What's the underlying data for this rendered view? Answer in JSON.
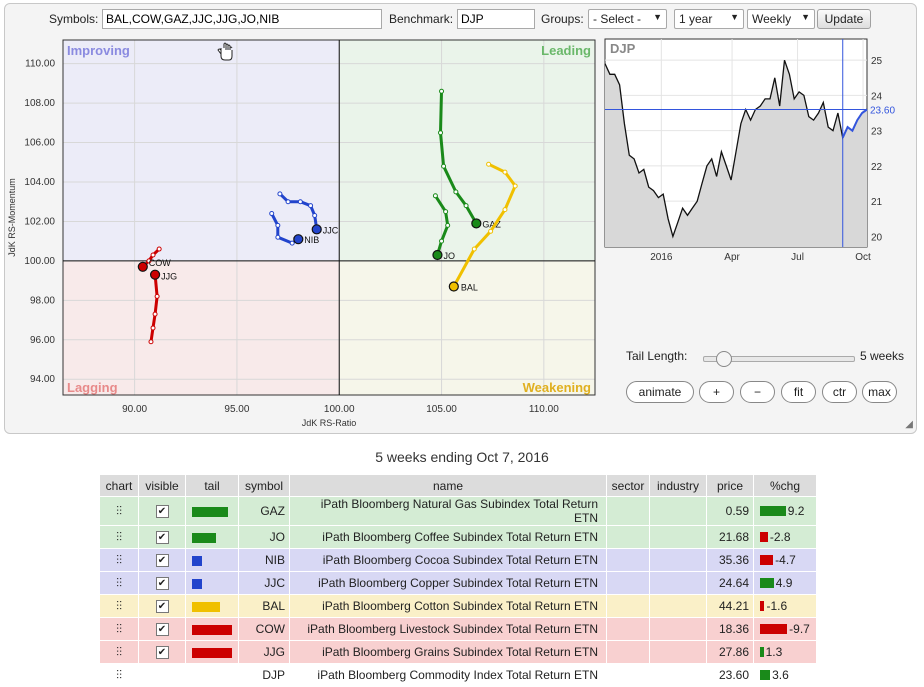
{
  "toolbar": {
    "symbols_label": "Symbols:",
    "symbols_value": "BAL,COW,GAZ,JJC,JJG,JO,NIB",
    "benchmark_label": "Benchmark:",
    "benchmark_value": "DJP",
    "groups_label": "Groups:",
    "groups_value": "- Select -",
    "period_value": "1 year",
    "interval_value": "Weekly",
    "update_label": "Update"
  },
  "quadrants": {
    "improving": "Improving",
    "leading": "Leading",
    "lagging": "Lagging",
    "weakening": "Weakening"
  },
  "controls": {
    "tail_length_label": "Tail Length:",
    "tail_length_value": "5 weeks",
    "animate": "animate",
    "plus": "+",
    "minus": "−",
    "fit": "fit",
    "ctr": "ctr",
    "max": "max"
  },
  "subtitle": "5 weeks ending Oct 7, 2016",
  "table": {
    "headers": [
      "chart",
      "visible",
      "tail",
      "symbol",
      "name",
      "sector",
      "industry",
      "price",
      "%chg"
    ],
    "rows": [
      {
        "symbol": "GAZ",
        "name": "iPath Bloomberg Natural Gas Subindex Total Return ETN",
        "price": "0.59",
        "chg": "9.2",
        "chg_value": 9.2,
        "row_color": "#d4ecd4",
        "tail_color": "#1a8a1a",
        "tail_len": 36,
        "visible": true
      },
      {
        "symbol": "JO",
        "name": "iPath Bloomberg Coffee Subindex Total Return ETN",
        "price": "21.68",
        "chg": "-2.8",
        "chg_value": -2.8,
        "row_color": "#d4ecd4",
        "tail_color": "#1a8a1a",
        "tail_len": 24,
        "visible": true
      },
      {
        "symbol": "NIB",
        "name": "iPath Bloomberg Cocoa Subindex Total Return ETN",
        "price": "35.36",
        "chg": "-4.7",
        "chg_value": -4.7,
        "row_color": "#d8d8f4",
        "tail_color": "#2244cc",
        "tail_len": 10,
        "visible": true
      },
      {
        "symbol": "JJC",
        "name": "iPath Bloomberg Copper Subindex Total Return ETN",
        "price": "24.64",
        "chg": "4.9",
        "chg_value": 4.9,
        "row_color": "#d8d8f4",
        "tail_color": "#2244cc",
        "tail_len": 10,
        "visible": true
      },
      {
        "symbol": "BAL",
        "name": "iPath Bloomberg Cotton Subindex Total Return ETN",
        "price": "44.21",
        "chg": "-1.6",
        "chg_value": -1.6,
        "row_color": "#faf0c8",
        "tail_color": "#f0c000",
        "tail_len": 28,
        "visible": true
      },
      {
        "symbol": "COW",
        "name": "iPath Bloomberg Livestock Subindex Total Return ETN",
        "price": "18.36",
        "chg": "-9.7",
        "chg_value": -9.7,
        "row_color": "#f8d0d0",
        "tail_color": "#cc0000",
        "tail_len": 40,
        "visible": true
      },
      {
        "symbol": "JJG",
        "name": "iPath Bloomberg Grains Subindex Total Return ETN",
        "price": "27.86",
        "chg": "1.3",
        "chg_value": 1.3,
        "row_color": "#f8d0d0",
        "tail_color": "#cc0000",
        "tail_len": 40,
        "visible": true
      },
      {
        "symbol": "DJP",
        "name": "iPath Bloomberg Commodity Index Total Return ETN",
        "price": "23.60",
        "chg": "3.6",
        "chg_value": 3.6,
        "row_color": "#ffffff",
        "tail_color": "",
        "tail_len": 0,
        "visible": false
      }
    ]
  },
  "chart_data": [
    {
      "type": "scatter",
      "title": "",
      "xlabel": "JdK RS-Ratio",
      "ylabel": "JdK RS-Momentum",
      "xlim": [
        86.5,
        112.5
      ],
      "ylim": [
        93.2,
        111.2
      ],
      "x_ticks": [
        "90.00",
        "95.00",
        "100.00",
        "105.00",
        "110.00"
      ],
      "y_ticks": [
        "94.00",
        "96.00",
        "98.00",
        "100.00",
        "102.00",
        "104.00",
        "106.00",
        "108.00",
        "110.00"
      ],
      "series": [
        {
          "name": "GAZ",
          "color": "#1a8a1a",
          "points": [
            [
              105.0,
              108.6
            ],
            [
              104.95,
              106.5
            ],
            [
              105.1,
              104.8
            ],
            [
              105.7,
              103.5
            ],
            [
              106.2,
              102.8
            ],
            [
              106.7,
              101.9
            ]
          ]
        },
        {
          "name": "JO",
          "color": "#1a8a1a",
          "points": [
            [
              104.7,
              103.3
            ],
            [
              105.2,
              102.5
            ],
            [
              105.3,
              101.8
            ],
            [
              105.0,
              101.0
            ],
            [
              104.8,
              100.3
            ]
          ]
        },
        {
          "name": "NIB",
          "color": "#2244cc",
          "points": [
            [
              96.7,
              102.4
            ],
            [
              97.0,
              101.8
            ],
            [
              97.0,
              101.2
            ],
            [
              97.7,
              100.9
            ],
            [
              98.0,
              101.1
            ]
          ]
        },
        {
          "name": "JJC",
          "color": "#2244cc",
          "points": [
            [
              97.1,
              103.4
            ],
            [
              97.5,
              103.0
            ],
            [
              98.1,
              103.0
            ],
            [
              98.6,
              102.8
            ],
            [
              98.8,
              102.3
            ],
            [
              98.9,
              101.6
            ]
          ]
        },
        {
          "name": "BAL",
          "color": "#f0c000",
          "points": [
            [
              107.3,
              104.9
            ],
            [
              108.1,
              104.5
            ],
            [
              108.6,
              103.8
            ],
            [
              108.1,
              102.6
            ],
            [
              107.4,
              101.5
            ],
            [
              106.6,
              100.6
            ],
            [
              105.6,
              98.7
            ]
          ]
        },
        {
          "name": "COW",
          "color": "#cc0000",
          "points": [
            [
              91.2,
              100.6
            ],
            [
              90.9,
              100.3
            ],
            [
              90.7,
              100.0
            ],
            [
              90.4,
              99.7
            ]
          ]
        },
        {
          "name": "JJG",
          "color": "#cc0000",
          "points": [
            [
              90.8,
              95.9
            ],
            [
              90.9,
              96.6
            ],
            [
              91.0,
              97.3
            ],
            [
              91.1,
              98.2
            ],
            [
              91.0,
              99.3
            ]
          ]
        }
      ]
    },
    {
      "type": "line",
      "title": "DJP",
      "x_ticks": [
        "2016",
        "Apr",
        "Jul",
        "Oct"
      ],
      "y_ticks": [
        "20",
        "21",
        "22",
        "23",
        "24",
        "25"
      ],
      "ylim": [
        19.7,
        25.6
      ],
      "current_label": "23.60",
      "values": [
        24.9,
        24.6,
        24.6,
        24.3,
        23.2,
        22.3,
        22.2,
        21.8,
        21.9,
        21.4,
        21.3,
        21.1,
        21.2,
        20.5,
        20.0,
        20.4,
        20.8,
        20.6,
        20.8,
        21.0,
        21.5,
        22.0,
        22.2,
        21.7,
        22.4,
        22.0,
        21.6,
        22.4,
        23.2,
        23.6,
        23.3,
        23.6,
        23.7,
        23.9,
        23.9,
        24.5,
        23.7,
        25.0,
        24.6,
        23.9,
        24.1,
        24.0,
        23.4,
        23.3,
        23.5,
        23.8,
        23.1,
        23.0,
        23.5,
        22.8,
        23.1,
        23.0,
        23.3,
        23.5,
        23.6
      ]
    }
  ]
}
